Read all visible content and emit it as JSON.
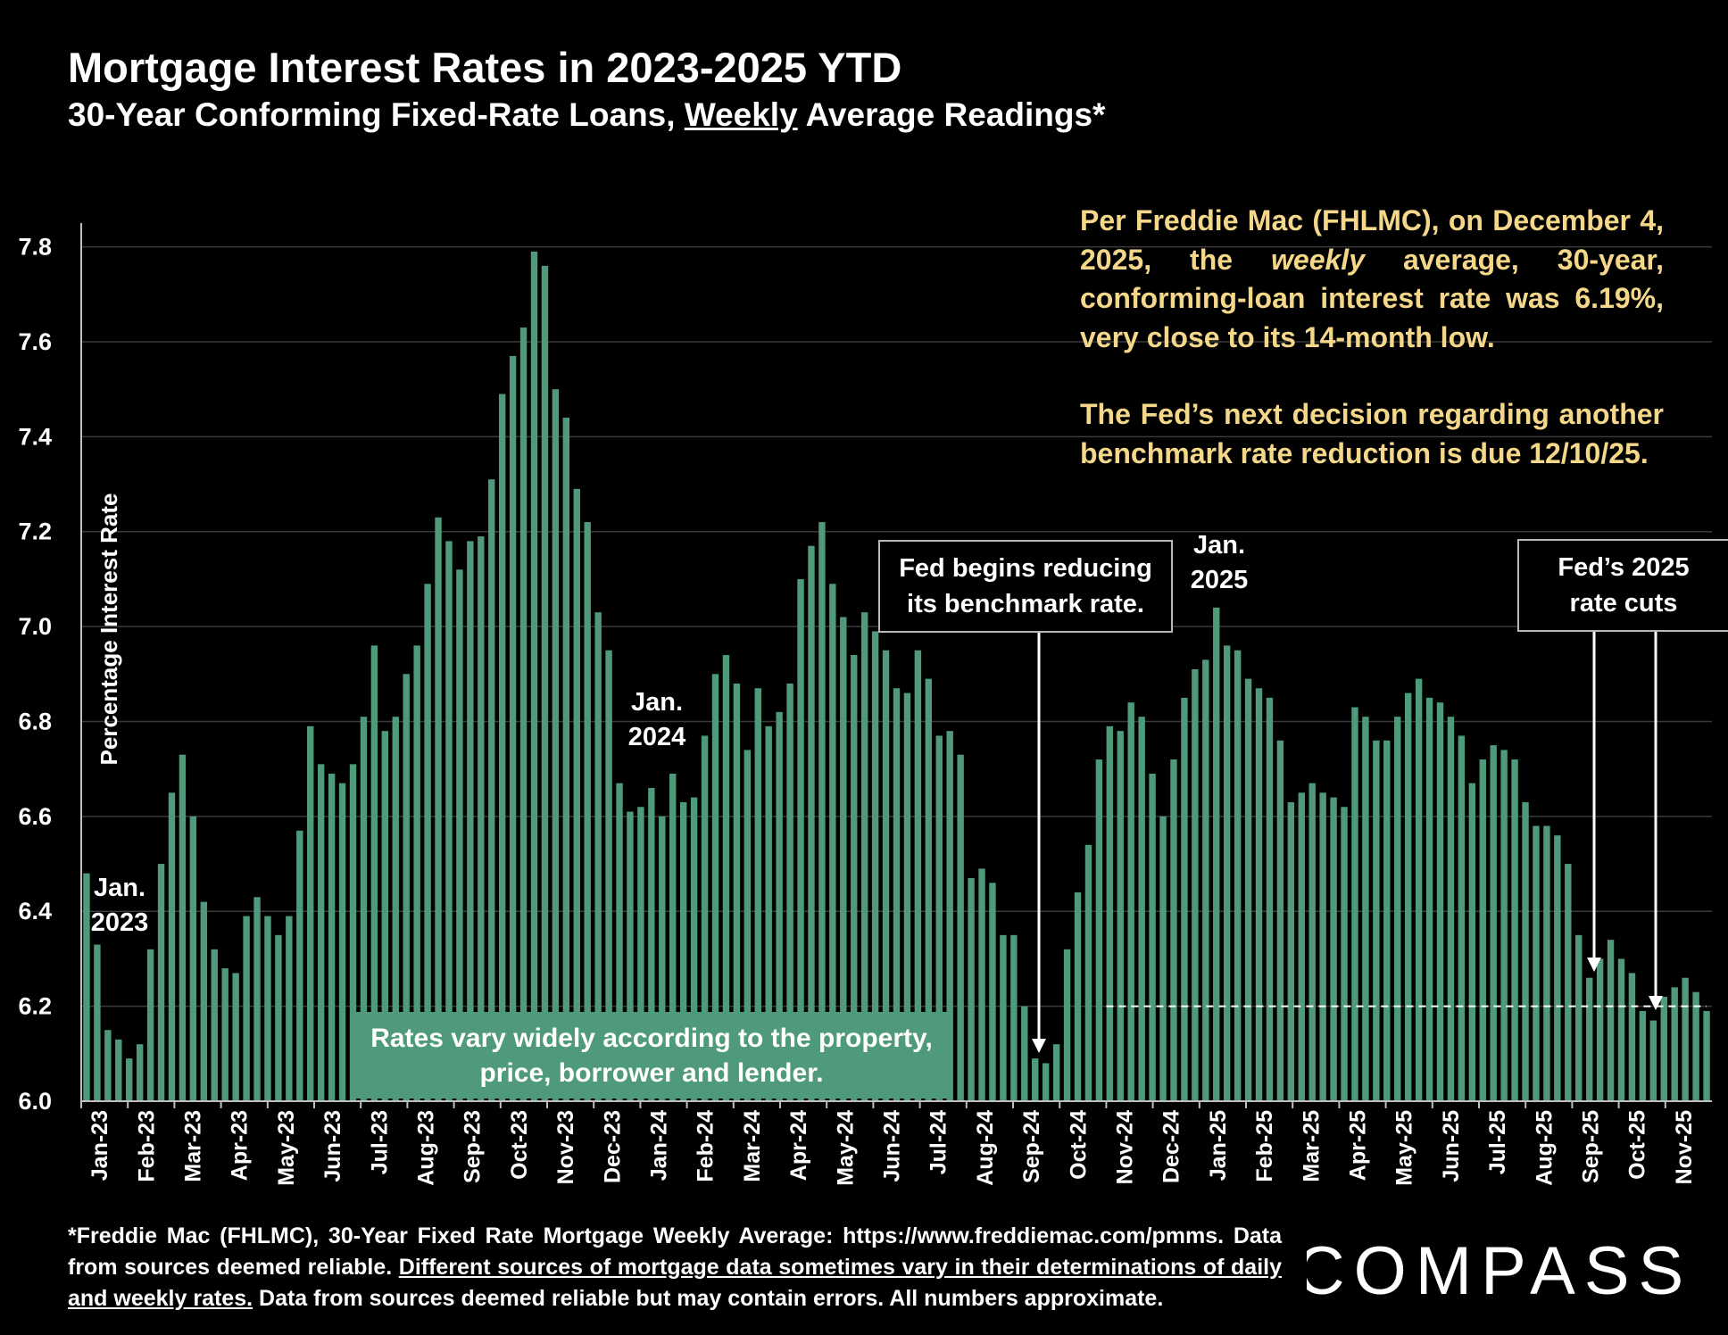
{
  "title": "Mortgage Interest Rates in 2023-2025 YTD",
  "subtitle": {
    "before": "30-Year Conforming Fixed-Rate Loans, ",
    "underlined": "Weekly",
    "after": " Average Readings*"
  },
  "annotations": {
    "fed_text_p1_a": "Per Freddie Mac (FHLMC), on December 4, 2025, the ",
    "fed_text_p1_italic": "weekly",
    "fed_text_p1_b": " average, 30-year, conforming-loan interest rate was 6.19%, very close to its 14-month low.",
    "fed_text_p2": "The Fed’s next decision regarding another benchmark rate reduction is due 12/10/25.",
    "fed_text_color": "#f5d78a",
    "fed_begins": [
      "Fed begins reducing",
      "its benchmark rate."
    ],
    "fed_cuts": [
      "Fed’s 2025",
      "rate cuts"
    ],
    "vary": [
      "Rates vary widely according to the property,",
      "price, borrower and lender."
    ],
    "jan_2023": [
      "Jan.",
      "2023"
    ],
    "jan_2024": [
      "Jan.",
      "2024"
    ],
    "jan_2025": [
      "Jan.",
      "2025"
    ]
  },
  "footnote": {
    "line1": "*Freddie Mac (FHLMC), 30-Year Fixed Rate Mortgage Weekly Average:  https://www.freddiemac.com/pmms.",
    "line2_plain": "Data from sources deemed reliable. ",
    "line2_underlined": "Different sources of mortgage data sometimes vary in their determinations of daily and weekly rates.",
    "line2_end": " Data from sources deemed reliable but may contain errors. All numbers approximate."
  },
  "logo": "COMPASS",
  "colors": {
    "bar": "#4e9a7b",
    "background": "#000000",
    "grid": "#3a3a3a",
    "reference_line": "#ffffff"
  },
  "chart_data": {
    "type": "bar",
    "ylabel": "Percentage Interest  Rate",
    "ylim": [
      6.0,
      7.85
    ],
    "yticks": [
      6.0,
      6.2,
      6.4,
      6.6,
      6.8,
      7.0,
      7.2,
      7.4,
      7.6,
      7.8
    ],
    "grid": true,
    "reference_line": {
      "value": 6.2,
      "style": "dashed",
      "from_month": "Nov-24"
    },
    "month_labels": [
      "Jan-23",
      "Feb-23",
      "Mar-23",
      "Apr-23",
      "May-23",
      "Jun-23",
      "Jul-23",
      "Aug-23",
      "Sep-23",
      "Oct-23",
      "Nov-23",
      "Dec-23",
      "Jan-24",
      "Feb-24",
      "Mar-24",
      "Apr-24",
      "May-24",
      "Jun-24",
      "Jul-24",
      "Aug-24",
      "Sep-24",
      "Oct-24",
      "Nov-24",
      "Dec-24",
      "Jan-25",
      "Feb-25",
      "Mar-25",
      "Apr-25",
      "May-25",
      "Jun-25",
      "Jul-25",
      "Aug-25",
      "Sep-25",
      "Oct-25",
      "Nov-25"
    ],
    "values": [
      6.48,
      6.33,
      6.15,
      6.13,
      6.09,
      6.12,
      6.32,
      6.5,
      6.65,
      6.73,
      6.6,
      6.42,
      6.32,
      6.28,
      6.27,
      6.39,
      6.43,
      6.39,
      6.35,
      6.39,
      6.57,
      6.79,
      6.71,
      6.69,
      6.67,
      6.71,
      6.81,
      6.96,
      6.78,
      6.81,
      6.9,
      6.96,
      7.09,
      7.23,
      7.18,
      7.12,
      7.18,
      7.19,
      7.31,
      7.49,
      7.57,
      7.63,
      7.79,
      7.76,
      7.5,
      7.44,
      7.29,
      7.22,
      7.03,
      6.95,
      6.67,
      6.61,
      6.62,
      6.66,
      6.6,
      6.69,
      6.63,
      6.64,
      6.77,
      6.9,
      6.94,
      6.88,
      6.74,
      6.87,
      6.79,
      6.82,
      6.88,
      7.1,
      7.17,
      7.22,
      7.09,
      7.02,
      6.94,
      7.03,
      6.99,
      6.95,
      6.87,
      6.86,
      6.95,
      6.89,
      6.77,
      6.78,
      6.73,
      6.47,
      6.49,
      6.46,
      6.35,
      6.35,
      6.2,
      6.09,
      6.08,
      6.12,
      6.32,
      6.44,
      6.54,
      6.72,
      6.79,
      6.78,
      6.84,
      6.81,
      6.69,
      6.6,
      6.72,
      6.85,
      6.91,
      6.93,
      7.04,
      6.96,
      6.95,
      6.89,
      6.87,
      6.85,
      6.76,
      6.63,
      6.65,
      6.67,
      6.65,
      6.64,
      6.62,
      6.83,
      6.81,
      6.76,
      6.76,
      6.81,
      6.86,
      6.89,
      6.85,
      6.84,
      6.81,
      6.77,
      6.67,
      6.72,
      6.75,
      6.74,
      6.72,
      6.63,
      6.58,
      6.58,
      6.56,
      6.5,
      6.35,
      6.26,
      6.3,
      6.34,
      6.3,
      6.27,
      6.19,
      6.17,
      6.22,
      6.24,
      6.26,
      6.23,
      6.19
    ]
  }
}
